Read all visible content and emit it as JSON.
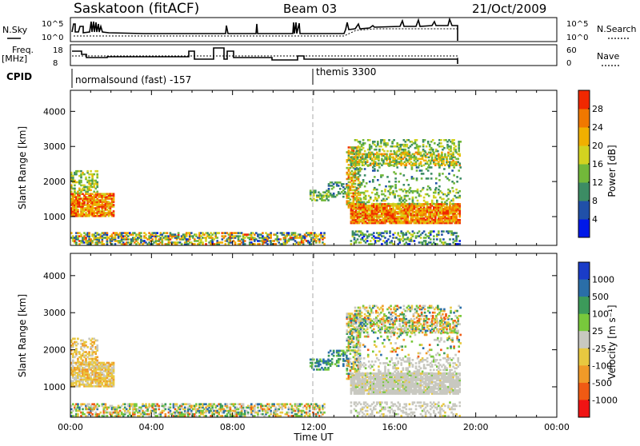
{
  "header": {
    "station": "Saskatoon (fitACF)",
    "beam": "Beam 03",
    "date": "21/Oct/2009"
  },
  "top_panels": {
    "nsky_label": "N.Sky",
    "nsky_ticks": [
      "10^5",
      "10^0"
    ],
    "nsearch_label": "N.Search",
    "nsearch_ticks": [
      "10^5",
      "10^0"
    ],
    "freq_label_1": "Freq.",
    "freq_label_2": "[MHz]",
    "freq_ticks": [
      "18",
      "8"
    ],
    "nave_label": "Nave",
    "nave_ticks": [
      "60",
      "0"
    ],
    "cpid_label": "CPID",
    "cpid_segments": [
      {
        "start_hour": 0.0,
        "end_hour": 12.0,
        "label": "normalsound (fast) -157"
      },
      {
        "start_hour": 12.0,
        "end_hour": 19.2,
        "label": "themis 3300"
      }
    ]
  },
  "chart_data": [
    {
      "type": "heatmap",
      "name": "power",
      "xlabel": "",
      "ylabel": "Slant Range [km]",
      "xlim": [
        0,
        24
      ],
      "ylim": [
        180,
        4600
      ],
      "yticks": [
        1000,
        2000,
        3000,
        4000
      ],
      "colorbar": {
        "label": "Power [dB]",
        "ticks": [
          "4",
          "8",
          "12",
          "16",
          "20",
          "24",
          "28"
        ],
        "colors": [
          "#0018e8",
          "#2050a8",
          "#3c8c64",
          "#72b83a",
          "#d2d220",
          "#f0b000",
          "#f07800",
          "#f02800"
        ]
      }
    },
    {
      "type": "heatmap",
      "name": "velocity",
      "xlabel": "Time UT",
      "ylabel": "Slant Range [km]",
      "xlim": [
        0,
        24
      ],
      "ylim": [
        180,
        4600
      ],
      "xticks": [
        "00:00",
        "04:00",
        "08:00",
        "12:00",
        "16:00",
        "20:00",
        "00:00"
      ],
      "yticks": [
        1000,
        2000,
        3000,
        4000
      ],
      "colorbar": {
        "label": "Velocity [m s⁻¹]",
        "ticks": [
          "1000",
          "500",
          "100",
          "25",
          "-25",
          "-100",
          "-500",
          "-1000"
        ],
        "colors": [
          "#1a3cc8",
          "#2a6ea8",
          "#3c9a5a",
          "#78c83c",
          "#c8c8c0",
          "#e8c840",
          "#f09a28",
          "#f05a14",
          "#f01414"
        ]
      }
    }
  ]
}
